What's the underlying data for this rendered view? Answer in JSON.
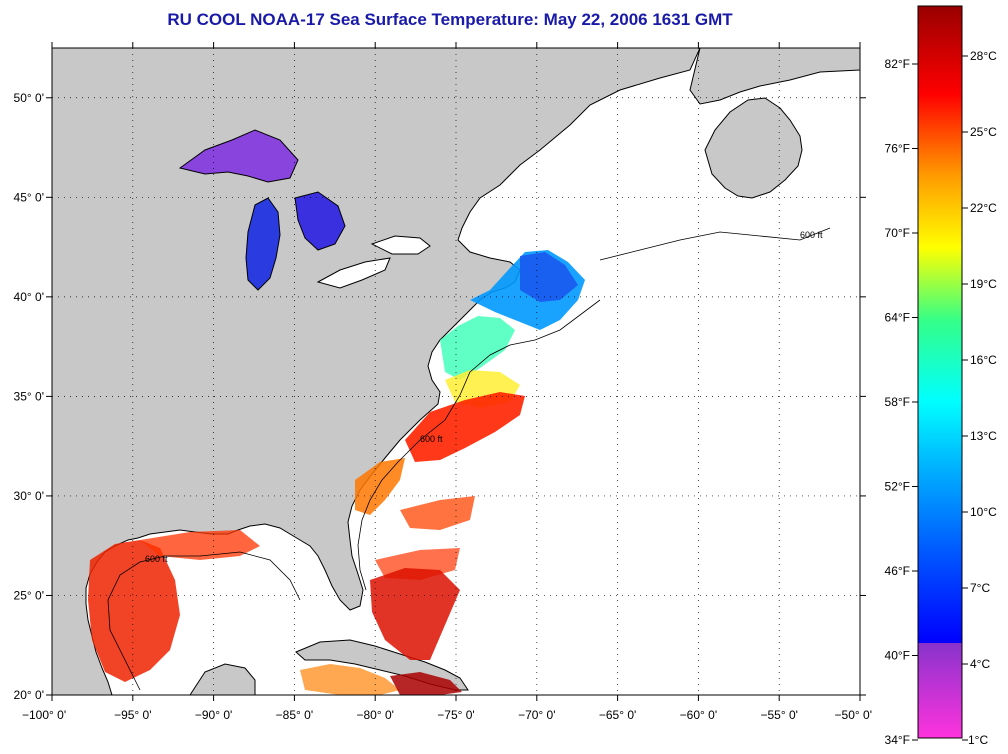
{
  "title": "RU COOL  NOAA-17  Sea Surface Temperature:  May 22, 2006 1631 GMT",
  "map": {
    "lon_range": [
      -100,
      -50
    ],
    "lat_range": [
      20,
      52.5
    ],
    "lat_ticks": [
      {
        "value": 50,
        "label": "50° 0'"
      },
      {
        "value": 45,
        "label": "45° 0'"
      },
      {
        "value": 40,
        "label": "40° 0'"
      },
      {
        "value": 35,
        "label": "35° 0'"
      },
      {
        "value": 30,
        "label": "30° 0'"
      },
      {
        "value": 25,
        "label": "25° 0'"
      },
      {
        "value": 20,
        "label": "20° 0'"
      }
    ],
    "lon_ticks": [
      {
        "value": -100,
        "label": "−100° 0'"
      },
      {
        "value": -95,
        "label": "−95° 0'"
      },
      {
        "value": -90,
        "label": "−90° 0'"
      },
      {
        "value": -85,
        "label": "−85° 0'"
      },
      {
        "value": -80,
        "label": "−80° 0'"
      },
      {
        "value": -75,
        "label": "−75° 0'"
      },
      {
        "value": -70,
        "label": "−70° 0'"
      },
      {
        "value": -65,
        "label": "−65° 0'"
      },
      {
        "value": -60,
        "label": "−60° 0'"
      },
      {
        "value": -55,
        "label": "−55° 0'"
      },
      {
        "value": -50,
        "label": "−50° 0'"
      }
    ],
    "contour_label": "600 ft",
    "colors": {
      "land": "#c8c8c8",
      "ocean": "#ffffff",
      "coast": "#000000"
    }
  },
  "colorbar": {
    "celsius_labels": [
      "28°C",
      "25°C",
      "22°C",
      "19°C",
      "16°C",
      "13°C",
      "10°C",
      "7°C",
      "4°C",
      "1°C"
    ],
    "fahrenheit_labels": [
      "82°F",
      "76°F",
      "70°F",
      "64°F",
      "58°F",
      "52°F",
      "46°F",
      "40°F",
      "34°F"
    ],
    "colors": [
      "#ff33cc",
      "#9933cc",
      "#0000ff",
      "#00aaff",
      "#00ffff",
      "#33ff99",
      "#ffff00",
      "#ff9900",
      "#ff0000",
      "#990000"
    ]
  }
}
